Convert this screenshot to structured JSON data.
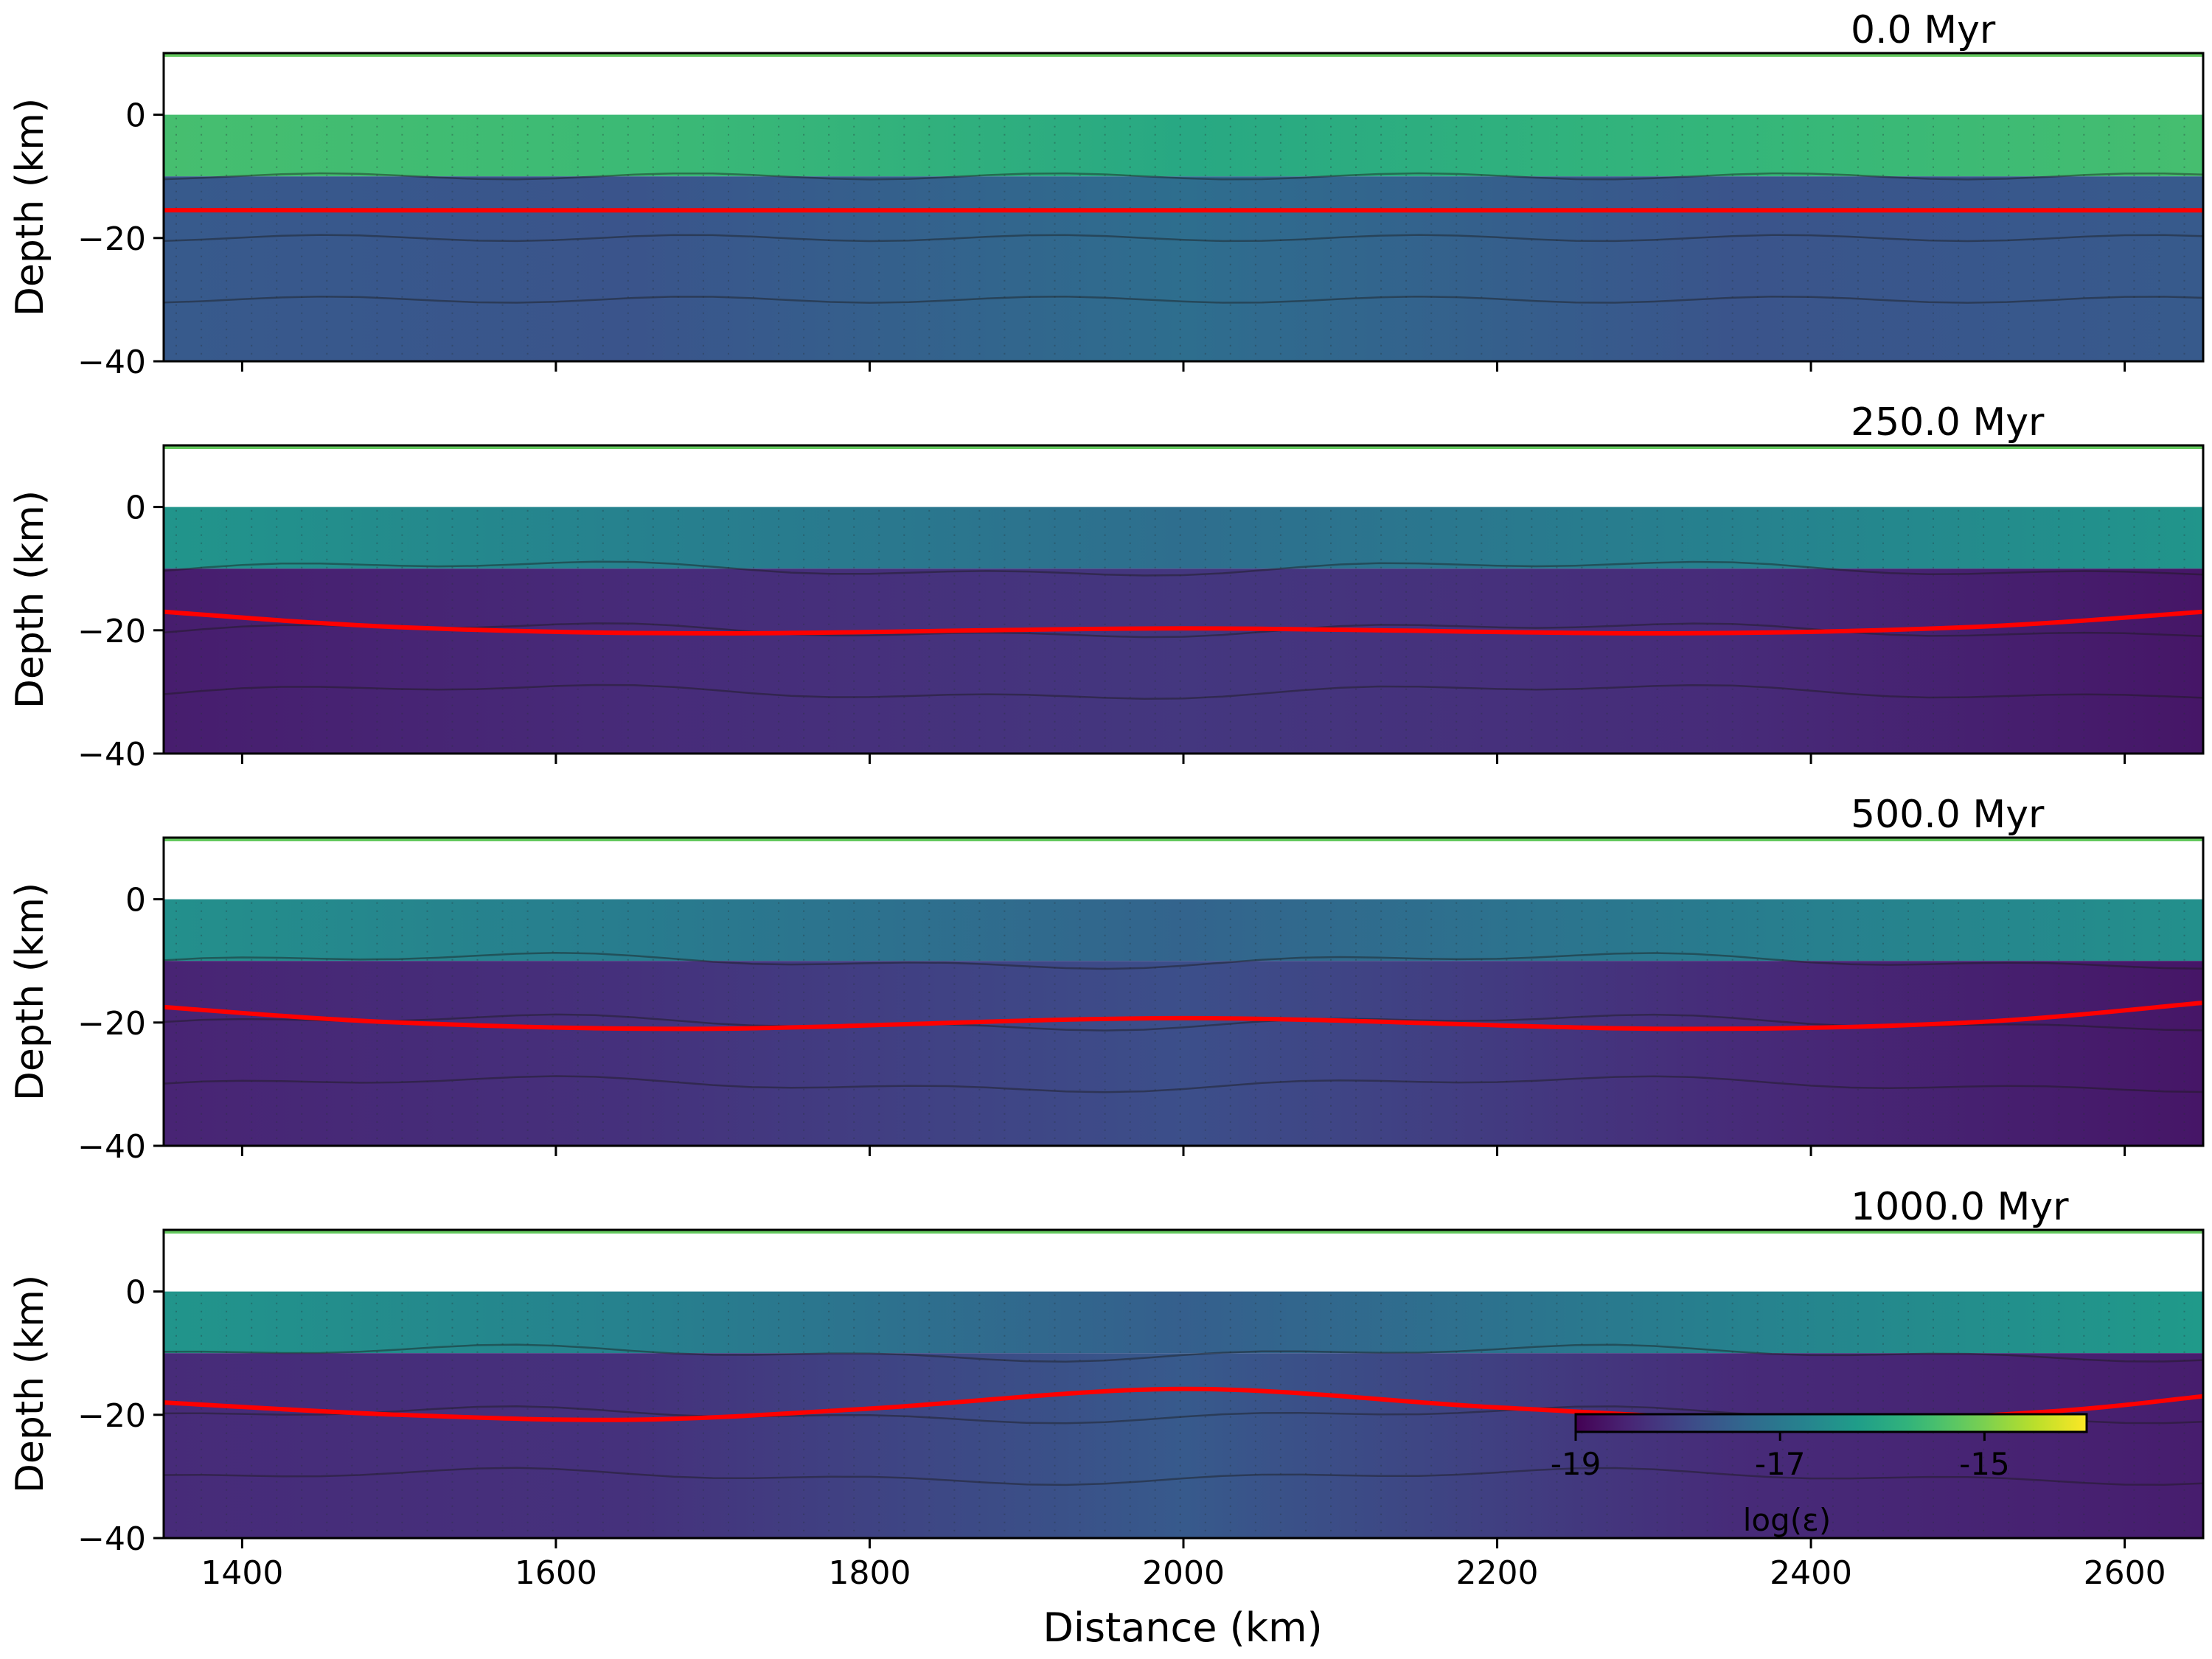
{
  "chart_data": {
    "type": "heatmap",
    "xlabel": "Distance (km)",
    "xlim": [
      1350,
      2650
    ],
    "x_ticks": [
      "1400",
      "1600",
      "1800",
      "2000",
      "2200",
      "2400",
      "2600"
    ],
    "shared_x": true,
    "panels": [
      {
        "title": "0.0 Myr",
        "ylabel": "Depth (km)",
        "ylim": [
          -40,
          10
        ],
        "y_ticks": [
          "0",
          "−20",
          "−40"
        ],
        "red_line_depth": [
          [
            1350,
            -15.5
          ],
          [
            1700,
            -15.5
          ],
          [
            2000,
            -15.5
          ],
          [
            2300,
            -15.5
          ],
          [
            2650,
            -15.5
          ]
        ],
        "upper_crust_log": [
          -15.5,
          -15.6,
          -16.0,
          -15.7,
          -15.5
        ],
        "lower_crust_log": [
          -17.6,
          -17.7,
          -17.2,
          -17.7,
          -17.6
        ]
      },
      {
        "title": "250.0 Myr",
        "ylabel": "Depth (km)",
        "ylim": [
          -40,
          10
        ],
        "y_ticks": [
          "0",
          "−20",
          "−40"
        ],
        "red_line_depth": [
          [
            1350,
            -17.0
          ],
          [
            1500,
            -19.5
          ],
          [
            1700,
            -20.5
          ],
          [
            2000,
            -19.7
          ],
          [
            2300,
            -20.5
          ],
          [
            2500,
            -19.5
          ],
          [
            2650,
            -17.0
          ]
        ],
        "upper_crust_log": [
          -16.4,
          -16.8,
          -17.2,
          -16.8,
          -16.4
        ],
        "lower_crust_log": [
          -18.6,
          -18.4,
          -18.2,
          -18.4,
          -18.7
        ]
      },
      {
        "title": "500.0 Myr",
        "ylabel": "Depth (km)",
        "ylim": [
          -40,
          10
        ],
        "y_ticks": [
          "0",
          "−20",
          "−40"
        ],
        "red_line_depth": [
          [
            1350,
            -17.5
          ],
          [
            1500,
            -20.0
          ],
          [
            1700,
            -21.0
          ],
          [
            2000,
            -19.3
          ],
          [
            2300,
            -21.0
          ],
          [
            2500,
            -20.0
          ],
          [
            2650,
            -16.8
          ]
        ],
        "upper_crust_log": [
          -16.5,
          -16.9,
          -17.4,
          -16.9,
          -16.5
        ],
        "lower_crust_log": [
          -18.5,
          -18.3,
          -17.8,
          -18.4,
          -18.7
        ]
      },
      {
        "title": "1000.0 Myr",
        "ylabel": "Depth (km)",
        "ylim": [
          -40,
          10
        ],
        "y_ticks": [
          "0",
          "−20",
          "−40"
        ],
        "red_line_depth": [
          [
            1350,
            -18.0
          ],
          [
            1500,
            -20.0
          ],
          [
            1650,
            -20.8
          ],
          [
            1800,
            -19.0
          ],
          [
            2000,
            -15.8
          ],
          [
            2200,
            -18.8
          ],
          [
            2400,
            -21.0
          ],
          [
            2550,
            -19.5
          ],
          [
            2650,
            -17.0
          ]
        ],
        "upper_crust_log": [
          -16.4,
          -16.8,
          -17.5,
          -16.8,
          -16.3
        ],
        "lower_crust_log": [
          -18.4,
          -18.3,
          -17.6,
          -18.4,
          -18.6
        ]
      }
    ],
    "colorbar": {
      "label": "log(ε)",
      "ticks": [
        "-19",
        "-17",
        "-15"
      ],
      "tick_values": [
        -19,
        -17,
        -15
      ],
      "range": [
        -19,
        -14
      ],
      "colormap": "viridis"
    },
    "colors": {
      "red_line": "#ff0000",
      "contour": "#1a1a1a"
    }
  }
}
